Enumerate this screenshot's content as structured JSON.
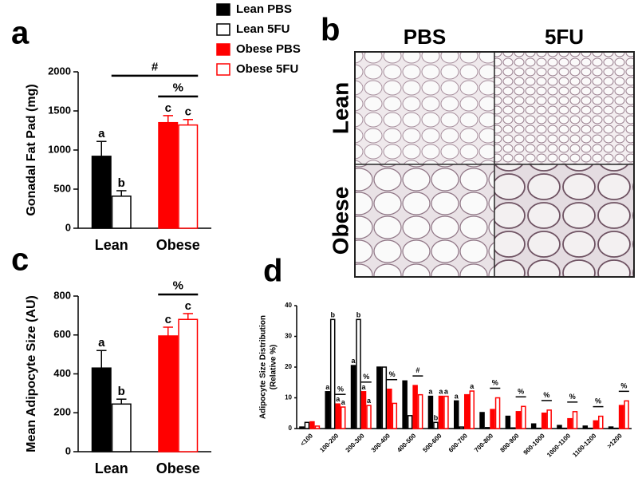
{
  "chart_data": [
    {
      "type": "bar",
      "panel_label": "a",
      "y_label": "Gonadal Fat Pad (mg)",
      "categories": [
        "Lean",
        "Obese"
      ],
      "series": [
        {
          "name": "Lean PBS",
          "color": "#000000",
          "fill": "#000000",
          "values": [
            920,
            null
          ],
          "errors": [
            190,
            null
          ]
        },
        {
          "name": "Lean 5FU",
          "color": "#000000",
          "fill": "#ffffff",
          "values": [
            410,
            null
          ],
          "errors": [
            70,
            null
          ]
        },
        {
          "name": "Obese PBS",
          "color": "#ff0000",
          "fill": "#ff0000",
          "values": [
            null,
            1350
          ],
          "errors": [
            null,
            90
          ]
        },
        {
          "name": "Obese 5FU",
          "color": "#ff0000",
          "fill": "#ffffff",
          "values": [
            null,
            1320
          ],
          "errors": [
            null,
            70
          ]
        }
      ],
      "ylim": [
        0,
        2000
      ],
      "yticks": [
        0,
        500,
        1000,
        1500,
        2000
      ],
      "legend": "right",
      "annotations": [
        "a",
        "b",
        "c",
        "c",
        "#",
        "%"
      ]
    },
    {
      "type": "image_grid",
      "panel_label": "b",
      "columns": [
        "PBS",
        "5FU"
      ],
      "rows": [
        "Lean",
        "Obese"
      ]
    },
    {
      "type": "bar",
      "panel_label": "c",
      "y_label": "Mean Adipocyte Size (AU)",
      "categories": [
        "Lean",
        "Obese"
      ],
      "series": [
        {
          "color": "#000000",
          "fill": "#000000",
          "values": [
            430,
            null
          ],
          "errors": [
            90,
            null
          ]
        },
        {
          "color": "#000000",
          "fill": "#ffffff",
          "values": [
            245,
            null
          ],
          "errors": [
            25,
            null
          ]
        },
        {
          "color": "#ff0000",
          "fill": "#ff0000",
          "values": [
            null,
            595
          ],
          "errors": [
            null,
            45
          ]
        },
        {
          "color": "#ff0000",
          "fill": "#ffffff",
          "values": [
            null,
            680
          ],
          "errors": [
            null,
            30
          ]
        }
      ],
      "ylim": [
        0,
        800
      ],
      "yticks": [
        0,
        200,
        400,
        600,
        800
      ],
      "annotations": [
        "a",
        "b",
        "c",
        "c",
        "%"
      ]
    },
    {
      "type": "bar",
      "panel_label": "d",
      "y_label": [
        "Adipocyte Size Distribution",
        "(Relative %)"
      ],
      "categories": [
        "<100",
        "100-200",
        "200-300",
        "300-400",
        "400-500",
        "500-600",
        "600-700",
        "700-800",
        "800-900",
        "900-1000",
        "1000-1100",
        "1100-1200",
        ">1200"
      ],
      "series": [
        {
          "color": "#000000",
          "fill": "#000000",
          "values": [
            0.5,
            12,
            20.5,
            20,
            15.5,
            10.5,
            9,
            5.2,
            4,
            1.5,
            1,
            0.8,
            0.5
          ]
        },
        {
          "color": "#000000",
          "fill": "#ffffff",
          "values": [
            2,
            35.5,
            35.5,
            20,
            4.2,
            2,
            0.5,
            0.3,
            0.2,
            0.1,
            0.1,
            0.1,
            0.1
          ]
        },
        {
          "color": "#ff0000",
          "fill": "#ff0000",
          "values": [
            2.2,
            8,
            12,
            12.8,
            14,
            10.5,
            11,
            6.2,
            5.5,
            5,
            3.2,
            2.5,
            7.5
          ]
        },
        {
          "color": "#ff0000",
          "fill": "#ffffff",
          "values": [
            0.8,
            7,
            7.5,
            8.2,
            11,
            10.5,
            12.2,
            10,
            7.2,
            6,
            5.5,
            4,
            9
          ]
        }
      ],
      "ylim": [
        0,
        40
      ],
      "yticks": [
        0,
        10,
        20,
        30,
        40
      ],
      "annotations": [
        "a",
        "b",
        "a",
        "a",
        "%",
        "a",
        "b",
        "a",
        "a",
        "%",
        "%",
        "#",
        "a",
        "b",
        "a",
        "a",
        "a",
        "a",
        "%",
        "%",
        "%",
        "%",
        "%",
        "%"
      ]
    }
  ]
}
